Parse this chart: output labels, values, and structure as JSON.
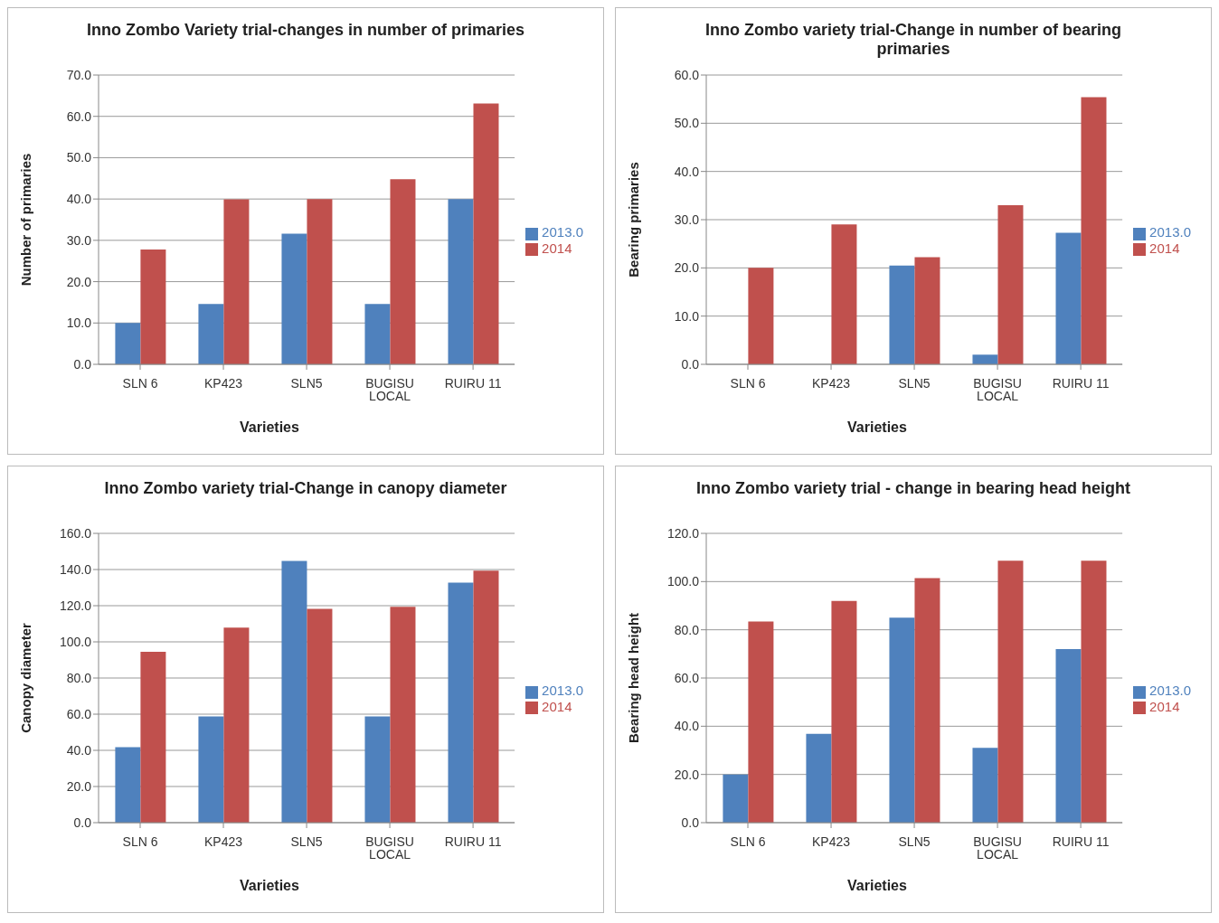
{
  "chart_data": [
    {
      "type": "bar",
      "title": "Inno Zombo Variety trial-changes in number of primaries",
      "xlabel": "Varieties",
      "ylabel": "Number of primaries",
      "categories": [
        "SLN 6",
        "KP423",
        "SLN5",
        "BUGISU LOCAL",
        "RUIRU 11"
      ],
      "series": [
        {
          "name": "2013.0",
          "color": "#4f81bd",
          "values": [
            10,
            14.6,
            31.6,
            14.6,
            40
          ]
        },
        {
          "name": "2014",
          "color": "#c0504d",
          "values": [
            27.8,
            39.9,
            40,
            44.8,
            63.1
          ]
        }
      ],
      "ylim": [
        0,
        70
      ],
      "yticks": [
        {
          "value": 0,
          "label": "0.0"
        },
        {
          "value": 10,
          "label": "10.0"
        },
        {
          "value": 20,
          "label": "20.0"
        },
        {
          "value": 30,
          "label": "30.0"
        },
        {
          "value": 40,
          "label": "40.0"
        },
        {
          "value": 50,
          "label": "50.0"
        },
        {
          "value": 60,
          "label": "60.0"
        },
        {
          "value": 70,
          "label": "70.0"
        }
      ],
      "grid": "y",
      "legend": "right"
    },
    {
      "type": "bar",
      "title": "Inno Zombo variety trial-Change in number of bearing primaries",
      "xlabel": "Varieties",
      "ylabel": "Bearing primaries",
      "categories": [
        "SLN 6",
        "KP423",
        "SLN5",
        "BUGISU LOCAL",
        "RUIRU 11"
      ],
      "series": [
        {
          "name": "2013.0",
          "color": "#4f81bd",
          "values": [
            null,
            null,
            20.5,
            2,
            27.3
          ]
        },
        {
          "name": "2014",
          "color": "#c0504d",
          "values": [
            20,
            29,
            22.2,
            33,
            55.4
          ]
        }
      ],
      "ylim": [
        0,
        60
      ],
      "yticks": [
        {
          "value": 0,
          "label": "0.0"
        },
        {
          "value": 10,
          "label": "10.0"
        },
        {
          "value": 20,
          "label": "20.0"
        },
        {
          "value": 30,
          "label": "30.0"
        },
        {
          "value": 40,
          "label": "40.0"
        },
        {
          "value": 50,
          "label": "50.0"
        },
        {
          "value": 60,
          "label": "60.0"
        }
      ],
      "grid": "y",
      "legend": "right"
    },
    {
      "type": "bar",
      "title": "Inno Zombo variety trial-Change in canopy diameter",
      "xlabel": "Varieties",
      "ylabel": "Canopy diameter",
      "categories": [
        "SLN 6",
        "KP423",
        "SLN5",
        "BUGISU LOCAL",
        "RUIRU 11"
      ],
      "series": [
        {
          "name": "2013.0",
          "color": "#4f81bd",
          "values": [
            41.8,
            58.8,
            144.8,
            58.8,
            132.7
          ]
        },
        {
          "name": "2014",
          "color": "#c0504d",
          "values": [
            94.5,
            107.9,
            118.2,
            119.4,
            139.4
          ]
        }
      ],
      "ylim": [
        0,
        160
      ],
      "yticks": [
        {
          "value": 0,
          "label": "0.0"
        },
        {
          "value": 20,
          "label": "20.0"
        },
        {
          "value": 40,
          "label": "40.0"
        },
        {
          "value": 60,
          "label": "60.0"
        },
        {
          "value": 80,
          "label": "80.0"
        },
        {
          "value": 100,
          "label": "100.0"
        },
        {
          "value": 120,
          "label": "120.0"
        },
        {
          "value": 140,
          "label": "140.0"
        },
        {
          "value": 160,
          "label": "160.0"
        }
      ],
      "grid": "y",
      "legend": "right"
    },
    {
      "type": "bar",
      "title": "Inno Zombo variety trial - change in bearing head height",
      "xlabel": "Varieties",
      "ylabel": "Bearing head height",
      "categories": [
        "SLN 6",
        "KP423",
        "SLN5",
        "BUGISU LOCAL",
        "RUIRU 11"
      ],
      "series": [
        {
          "name": "2013.0",
          "color": "#4f81bd",
          "values": [
            20,
            36.8,
            85,
            31,
            72
          ]
        },
        {
          "name": "2014",
          "color": "#c0504d",
          "values": [
            83.4,
            92,
            101.4,
            108.7,
            108.7
          ]
        }
      ],
      "ylim": [
        0,
        120
      ],
      "yticks": [
        {
          "value": 0,
          "label": "0.0"
        },
        {
          "value": 20,
          "label": "20.0"
        },
        {
          "value": 40,
          "label": "40.0"
        },
        {
          "value": 60,
          "label": "60.0"
        },
        {
          "value": 80,
          "label": "80.0"
        },
        {
          "value": 100,
          "label": "100.0"
        },
        {
          "value": 120,
          "label": "120.0"
        }
      ],
      "grid": "y",
      "legend": "right"
    }
  ]
}
